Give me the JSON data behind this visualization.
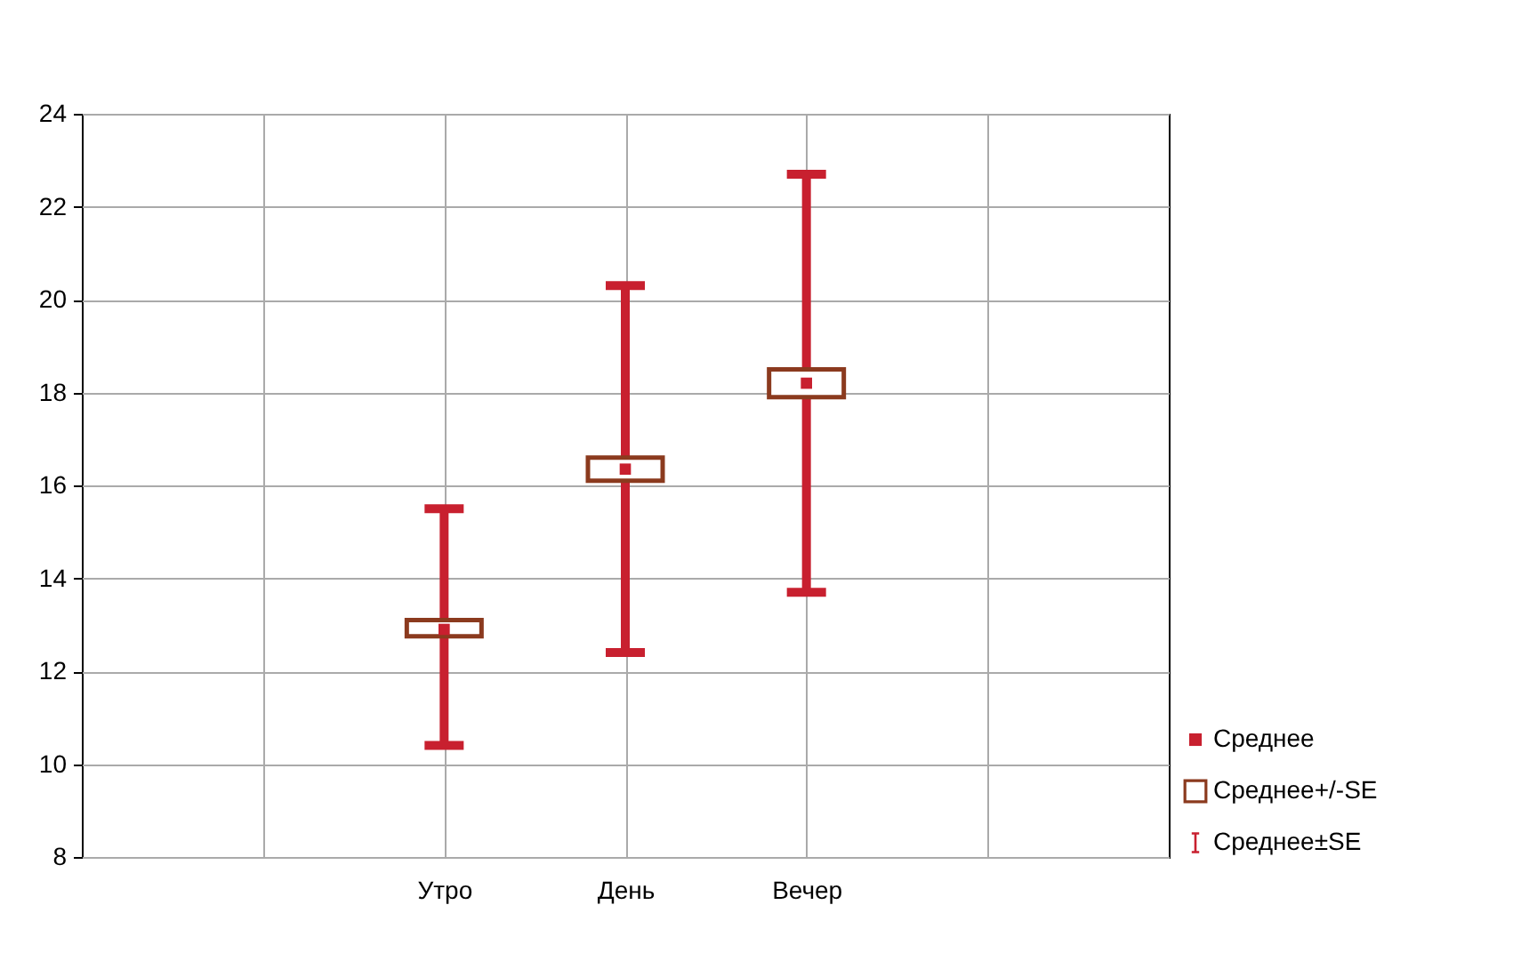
{
  "chart_data": {
    "type": "box",
    "categories": [
      null,
      "Утро",
      "День",
      "Вечер",
      null
    ],
    "ylim": [
      8,
      24
    ],
    "yticks": [
      8,
      10,
      12,
      14,
      16,
      18,
      20,
      22,
      24
    ],
    "grid": true,
    "legend": "right",
    "series": [
      {
        "name": "Среднее",
        "type": "scatter",
        "marker": "square",
        "color": "#c8202f",
        "values": [
          null,
          12.9,
          16.35,
          18.2,
          null
        ],
        "errors": [
          null,
          [
            10.4,
            15.5
          ],
          [
            12.4,
            20.3
          ],
          [
            13.7,
            22.7
          ],
          null
        ]
      },
      {
        "name": "Среднее+/-SE",
        "color": "#8b3a1e",
        "boxes": [
          null,
          {
            "q1": 12.75,
            "q3": 13.1
          },
          {
            "q1": 16.1,
            "q3": 16.6
          },
          {
            "q1": 17.9,
            "q3": 18.5
          },
          null
        ]
      }
    ],
    "annotations": [
      "Среднее±SE"
    ]
  }
}
